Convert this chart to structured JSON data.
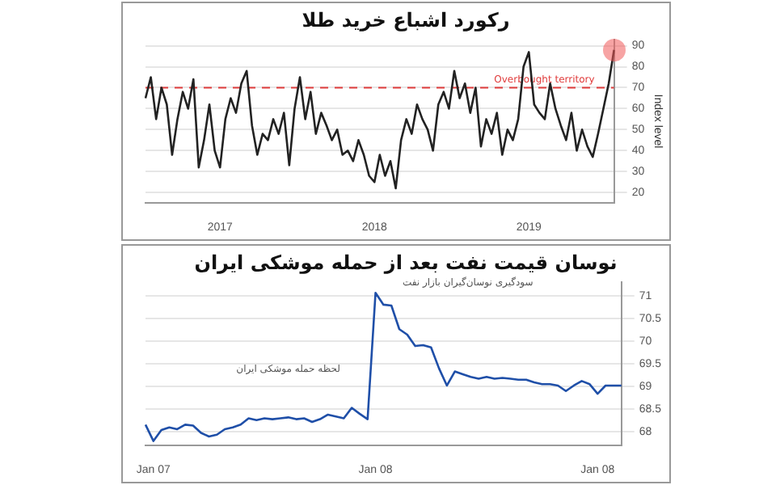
{
  "chart_data": [
    {
      "type": "line",
      "title": "رکورد اشباع خرید طلا",
      "ylabel": "Index level",
      "categories": [
        null,
        null,
        null,
        null,
        null,
        null,
        null,
        null,
        null,
        null,
        null,
        null,
        null,
        null,
        "2017",
        null,
        null,
        null,
        null,
        null,
        null,
        null,
        null,
        null,
        null,
        null,
        null,
        null,
        null,
        null,
        null,
        null,
        null,
        null,
        null,
        null,
        null,
        null,
        null,
        null,
        null,
        null,
        null,
        "2018",
        null,
        null,
        null,
        null,
        null,
        null,
        null,
        null,
        null,
        null,
        null,
        null,
        null,
        null,
        null,
        null,
        null,
        null,
        null,
        null,
        null,
        null,
        null,
        null,
        null,
        null,
        null,
        null,
        "2019",
        null,
        null,
        null,
        null,
        null,
        null,
        null,
        null,
        null,
        null,
        null,
        null,
        null,
        null,
        null,
        null
      ],
      "series": [
        {
          "color": "#222222",
          "values": [
            65,
            75,
            55,
            70,
            62,
            38,
            55,
            68,
            60,
            74,
            32,
            45,
            62,
            40,
            32,
            55,
            65,
            58,
            72,
            78,
            52,
            38,
            48,
            45,
            55,
            48,
            58,
            33,
            60,
            75,
            55,
            68,
            48,
            58,
            52,
            45,
            50,
            38,
            40,
            35,
            45,
            38,
            28,
            25,
            38,
            28,
            35,
            22,
            45,
            55,
            48,
            62,
            55,
            50,
            40,
            62,
            68,
            60,
            78,
            65,
            72,
            58,
            70,
            42,
            55,
            48,
            58,
            38,
            50,
            45,
            55,
            80,
            87,
            62,
            58,
            55,
            72,
            60,
            52,
            45,
            58,
            40,
            50,
            42,
            37,
            48,
            60,
            72,
            88
          ]
        }
      ],
      "ylim": [
        15,
        93
      ],
      "yticks": [
        20,
        30,
        40,
        50,
        60,
        70,
        80,
        90
      ],
      "grid": "y",
      "legend": false,
      "marker": "none",
      "line_style": "solid",
      "ref_lines": [
        {
          "axis": "y",
          "value": 70,
          "label": "Overbought territory",
          "color": "#e03c3c",
          "line_style": "dashed"
        }
      ]
    },
    {
      "type": "line",
      "title": "نوسان قیمت نفت بعد از حمله موشکی ایران",
      "categories": [
        null,
        "Jan 07",
        null,
        null,
        null,
        null,
        null,
        null,
        null,
        null,
        null,
        null,
        null,
        null,
        null,
        null,
        null,
        null,
        null,
        null,
        null,
        null,
        null,
        null,
        null,
        null,
        null,
        null,
        null,
        "Jan 08",
        null,
        null,
        null,
        null,
        null,
        null,
        null,
        null,
        null,
        null,
        null,
        null,
        null,
        null,
        null,
        null,
        null,
        null,
        null,
        null,
        null,
        null,
        null,
        null,
        null,
        null,
        null,
        "Jan 08",
        null,
        null,
        null
      ],
      "series": [
        {
          "color": "#1f4fa8",
          "values": [
            68.16,
            67.8,
            68.04,
            68.1,
            68.06,
            68.16,
            68.14,
            67.98,
            67.9,
            67.94,
            68.06,
            68.1,
            68.16,
            68.3,
            68.26,
            68.3,
            68.28,
            68.3,
            68.32,
            68.28,
            68.3,
            68.22,
            68.28,
            68.38,
            68.34,
            68.3,
            68.53,
            68.4,
            68.28,
            71.06,
            70.8,
            70.78,
            70.26,
            70.14,
            69.89,
            69.91,
            69.86,
            69.4,
            69.02,
            69.33,
            69.27,
            69.21,
            69.17,
            69.21,
            69.17,
            69.19,
            69.17,
            69.15,
            69.15,
            69.09,
            69.05,
            69.05,
            69.02,
            68.9,
            69.02,
            69.12,
            69.05,
            68.84,
            69.02,
            69.02,
            69.02
          ]
        }
      ],
      "ylim": [
        67.7,
        71.3
      ],
      "yticks": [
        68,
        68.5,
        69,
        69.5,
        70,
        70.5,
        71
      ],
      "grid": "y",
      "legend": false,
      "marker": "none",
      "line_style": "solid",
      "annotations": [
        "سودگیری نوسان‌گیران بازار نفت",
        "لحظه حمله موشکی ایران"
      ]
    }
  ]
}
